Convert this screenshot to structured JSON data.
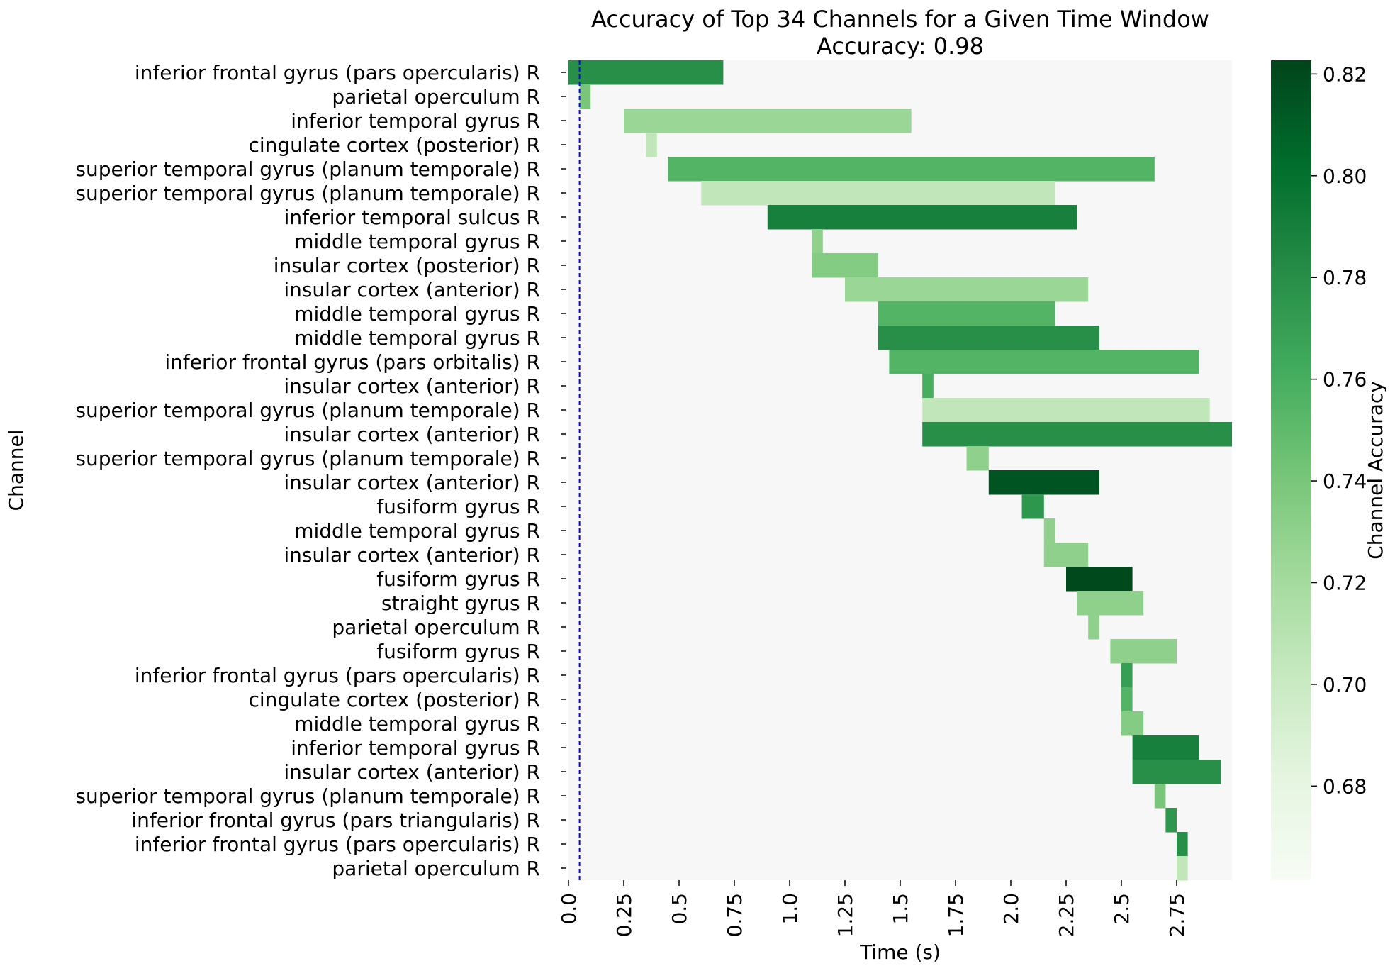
{
  "chart_data": {
    "type": "heatmap",
    "title": "Accuracy of Top 34 Channels for a Given Time Window",
    "subtitle": "Accuracy: 0.98",
    "xlabel": "Time (s)",
    "ylabel": "Channel",
    "colorbar_label": "Channel Accuracy",
    "xlim": [
      0,
      3.0
    ],
    "x_ticks": [
      0.0,
      0.25,
      0.5,
      0.75,
      1.0,
      1.25,
      1.5,
      1.75,
      2.0,
      2.25,
      2.5,
      2.75
    ],
    "x_tick_labels": [
      "0.0",
      "0.25",
      "0.5",
      "0.75",
      "1.0",
      "1.25",
      "1.5",
      "1.75",
      "2.0",
      "2.25",
      "2.5",
      "2.75"
    ],
    "colorbar_range": [
      0.6615,
      0.8227
    ],
    "colorbar_ticks": [
      0.68,
      0.7,
      0.72,
      0.74,
      0.76,
      0.78,
      0.8,
      0.82
    ],
    "colorbar_tick_labels": [
      "0.68",
      "0.70",
      "0.72",
      "0.74",
      "0.76",
      "0.78",
      "0.80",
      "0.82"
    ],
    "colormap": "Greens",
    "background_color": "#f7f7f7",
    "vline": {
      "x": 0.05,
      "color": "#0000ff",
      "style": "dashed"
    },
    "rows": [
      {
        "channel": "inferior frontal gyrus (pars opercularis) R",
        "start": 0.0,
        "end": 0.7,
        "accuracy": 0.78
      },
      {
        "channel": "parietal operculum R",
        "start": 0.05,
        "end": 0.1,
        "accuracy": 0.74
      },
      {
        "channel": "inferior temporal gyrus R",
        "start": 0.25,
        "end": 1.55,
        "accuracy": 0.725
      },
      {
        "channel": "cingulate cortex (posterior) R",
        "start": 0.35,
        "end": 0.4,
        "accuracy": 0.705
      },
      {
        "channel": "superior temporal gyrus (planum temporale) R",
        "start": 0.45,
        "end": 2.65,
        "accuracy": 0.755
      },
      {
        "channel": "superior temporal gyrus (planum temporale) R",
        "start": 0.6,
        "end": 2.2,
        "accuracy": 0.705
      },
      {
        "channel": "inferior temporal sulcus R",
        "start": 0.9,
        "end": 2.3,
        "accuracy": 0.79
      },
      {
        "channel": "middle temporal gyrus R",
        "start": 1.1,
        "end": 1.15,
        "accuracy": 0.73
      },
      {
        "channel": "insular cortex (posterior) R",
        "start": 1.1,
        "end": 1.4,
        "accuracy": 0.735
      },
      {
        "channel": "insular cortex (anterior) R",
        "start": 1.25,
        "end": 2.35,
        "accuracy": 0.725
      },
      {
        "channel": "middle temporal gyrus R",
        "start": 1.4,
        "end": 2.2,
        "accuracy": 0.755
      },
      {
        "channel": "middle temporal gyrus R",
        "start": 1.4,
        "end": 2.4,
        "accuracy": 0.78
      },
      {
        "channel": "inferior frontal gyrus (pars orbitalis) R",
        "start": 1.45,
        "end": 2.85,
        "accuracy": 0.755
      },
      {
        "channel": "insular cortex (anterior) R",
        "start": 1.6,
        "end": 1.65,
        "accuracy": 0.76
      },
      {
        "channel": "superior temporal gyrus (planum temporale) R",
        "start": 1.6,
        "end": 2.9,
        "accuracy": 0.705
      },
      {
        "channel": "insular cortex (anterior) R",
        "start": 1.6,
        "end": 3.0,
        "accuracy": 0.78
      },
      {
        "channel": "superior temporal gyrus (planum temporale) R",
        "start": 1.8,
        "end": 1.9,
        "accuracy": 0.73
      },
      {
        "channel": "insular cortex (anterior) R",
        "start": 1.9,
        "end": 2.4,
        "accuracy": 0.815
      },
      {
        "channel": "fusiform gyrus R",
        "start": 2.05,
        "end": 2.15,
        "accuracy": 0.775
      },
      {
        "channel": "middle temporal gyrus R",
        "start": 2.15,
        "end": 2.2,
        "accuracy": 0.73
      },
      {
        "channel": "insular cortex (anterior) R",
        "start": 2.15,
        "end": 2.35,
        "accuracy": 0.73
      },
      {
        "channel": "fusiform gyrus R",
        "start": 2.25,
        "end": 2.55,
        "accuracy": 0.82
      },
      {
        "channel": "straight gyrus R",
        "start": 2.3,
        "end": 2.6,
        "accuracy": 0.73
      },
      {
        "channel": "parietal operculum R",
        "start": 2.35,
        "end": 2.4,
        "accuracy": 0.73
      },
      {
        "channel": "fusiform gyrus R",
        "start": 2.45,
        "end": 2.75,
        "accuracy": 0.73
      },
      {
        "channel": "inferior frontal gyrus (pars opercularis) R",
        "start": 2.5,
        "end": 2.55,
        "accuracy": 0.77
      },
      {
        "channel": "cingulate cortex (posterior) R",
        "start": 2.5,
        "end": 2.55,
        "accuracy": 0.755
      },
      {
        "channel": "middle temporal gyrus R",
        "start": 2.5,
        "end": 2.6,
        "accuracy": 0.735
      },
      {
        "channel": "inferior temporal gyrus R",
        "start": 2.55,
        "end": 2.85,
        "accuracy": 0.79
      },
      {
        "channel": "insular cortex (anterior) R",
        "start": 2.55,
        "end": 2.95,
        "accuracy": 0.78
      },
      {
        "channel": "superior temporal gyrus (planum temporale) R",
        "start": 2.65,
        "end": 2.7,
        "accuracy": 0.74
      },
      {
        "channel": "inferior frontal gyrus (pars triangularis) R",
        "start": 2.7,
        "end": 2.75,
        "accuracy": 0.775
      },
      {
        "channel": "inferior frontal gyrus (pars opercularis) R",
        "start": 2.75,
        "end": 2.8,
        "accuracy": 0.78
      },
      {
        "channel": "parietal operculum R",
        "start": 2.75,
        "end": 2.8,
        "accuracy": 0.705
      }
    ]
  }
}
